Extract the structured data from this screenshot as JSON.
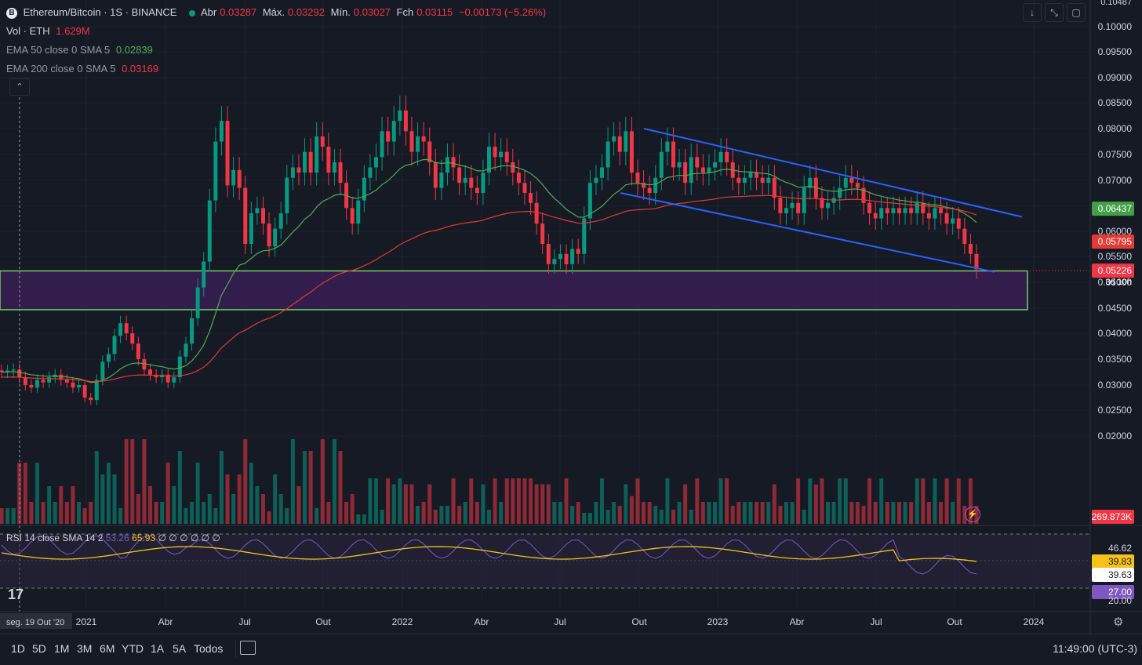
{
  "header": {
    "symbol_icon": "coin-icon",
    "title": "Ethereum/Bitcoin · 1S · BINANCE",
    "ohlc": {
      "open_label": "Abr",
      "open": "0.03287",
      "high_label": "Máx.",
      "high": "0.03292",
      "low_label": "Mín.",
      "low": "0.03027",
      "close_label": "Fch",
      "close": "0.03115",
      "change": "−0.00173 (−5.26%)"
    },
    "vol_label": "Vol · ETH",
    "vol_value": "1.629M",
    "ema50_label": "EMA 50 close 0 SMA 5",
    "ema50_value": "0.02839",
    "ema200_label": "EMA 200 close 0 SMA 5",
    "ema200_value": "0.03169"
  },
  "toolbar_icons": [
    "down-arrow-icon",
    "collapse-icon",
    "fullscreen-icon"
  ],
  "rsi": {
    "label": "RSI 14 close SMA 14 2",
    "v1": "53.26",
    "v2": "65.93",
    "rest": "∅ ∅ ∅ ∅ ∅ ∅"
  },
  "bottom": {
    "date_badge": "seg. 19 Out '20",
    "timeframes": [
      "1D",
      "5D",
      "1M",
      "3M",
      "6M",
      "YTD",
      "1A",
      "5A",
      "Todos"
    ],
    "clock": "11:49:00 (UTC-3)"
  },
  "colors": {
    "bull": "#089981",
    "bear": "#f23645",
    "ema50": "#4caf50",
    "ema200": "#e53935",
    "channel": "#2962ff",
    "zone_fill": "#3c1f5a",
    "zone_border": "#6dd15c",
    "rsi": "#7e57c2",
    "rsi_ma": "#f6c21a",
    "bg": "#161a25"
  },
  "chart_data": {
    "type": "candlestick",
    "symbol": "Ethereum/Bitcoin",
    "interval": "1S",
    "exchange": "BINANCE",
    "y_ticks": [
      "0.02000",
      "0.02500",
      "0.03000",
      "0.03500",
      "0.04000",
      "0.04500",
      "0.05000",
      "0.05500",
      "0.06000",
      "0.06500",
      "0.07000",
      "0.07500",
      "0.08000",
      "0.08500",
      "0.09000",
      "0.09500",
      "0.10000"
    ],
    "y_top_label": "0.10487",
    "x_ticks": [
      "2021",
      "Abr",
      "Jul",
      "Out",
      "2022",
      "Abr",
      "Jul",
      "Out",
      "2023",
      "Abr",
      "Jul",
      "Out",
      "2024"
    ],
    "price_labels": {
      "ema50": "0.06437",
      "ema200": "0.05795",
      "last": "0.05226",
      "countdown": "3d 10h",
      "volume": "269.873K"
    },
    "rsi_scale": [
      "46.62",
      "39.83",
      "39.63",
      "27.00",
      "20.00"
    ],
    "weekly_closes": [
      0.0325,
      0.0328,
      0.033,
      0.0315,
      0.03,
      0.0295,
      0.031,
      0.0305,
      0.0315,
      0.032,
      0.031,
      0.0305,
      0.0295,
      0.03,
      0.0275,
      0.027,
      0.031,
      0.0345,
      0.036,
      0.0395,
      0.042,
      0.04,
      0.038,
      0.035,
      0.033,
      0.032,
      0.0315,
      0.032,
      0.0305,
      0.0315,
      0.0355,
      0.038,
      0.043,
      0.049,
      0.054,
      0.066,
      0.0775,
      0.0815,
      0.069,
      0.072,
      0.0685,
      0.0575,
      0.0635,
      0.0645,
      0.0615,
      0.057,
      0.0605,
      0.0635,
      0.0705,
      0.0725,
      0.0715,
      0.0755,
      0.0715,
      0.0785,
      0.0765,
      0.0715,
      0.0735,
      0.0695,
      0.0645,
      0.0615,
      0.066,
      0.0705,
      0.0725,
      0.0745,
      0.0795,
      0.0775,
      0.0815,
      0.0835,
      0.0795,
      0.0755,
      0.0785,
      0.0775,
      0.0735,
      0.0685,
      0.0715,
      0.0745,
      0.0725,
      0.0695,
      0.0705,
      0.0685,
      0.0675,
      0.0715,
      0.0765,
      0.0745,
      0.0755,
      0.0735,
      0.0715,
      0.0695,
      0.0675,
      0.0655,
      0.0615,
      0.0575,
      0.0535,
      0.0545,
      0.0555,
      0.0535,
      0.0565,
      0.0555,
      0.0625,
      0.0695,
      0.0705,
      0.0725,
      0.0775,
      0.0785,
      0.0755,
      0.0795,
      0.0715,
      0.0695,
      0.0685,
      0.0675,
      0.0705,
      0.0755,
      0.0775,
      0.0725,
      0.0735,
      0.0695,
      0.0745,
      0.0725,
      0.0715,
      0.0725,
      0.0735,
      0.0755,
      0.0735,
      0.0705,
      0.0695,
      0.0705,
      0.0715,
      0.0705,
      0.0695,
      0.0705,
      0.0665,
      0.0635,
      0.0645,
      0.0655,
      0.0635,
      0.0685,
      0.0705,
      0.0665,
      0.0645,
      0.0655,
      0.0665,
      0.0685,
      0.0705,
      0.0695,
      0.0685,
      0.0655,
      0.0635,
      0.0625,
      0.0645,
      0.0635,
      0.0645,
      0.0635,
      0.0645,
      0.0635,
      0.0655,
      0.0635,
      0.0625,
      0.0645,
      0.0635,
      0.0615,
      0.0625,
      0.0605,
      0.0575,
      0.0555,
      0.0525
    ],
    "drawings": {
      "channel_upper": {
        "from": [
          "Out 2022",
          0.08
        ],
        "to": [
          "Dez 2023",
          0.0628
        ]
      },
      "channel_lower": {
        "from": [
          "Set 2022",
          0.0675
        ],
        "to": [
          "Nov 2023",
          0.052
        ]
      },
      "support_zone": {
        "top": 0.0522,
        "bottom": 0.0447
      }
    }
  }
}
